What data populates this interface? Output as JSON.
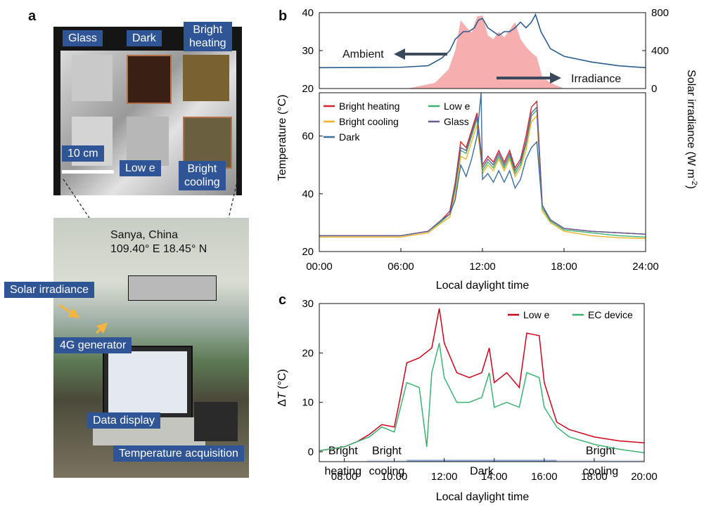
{
  "panel_a": {
    "letter": "a",
    "tile_labels": {
      "glass": "Glass",
      "dark": "Dark",
      "bright_heating": "Bright\nheating",
      "scale": "10 cm",
      "low_e": "Low e",
      "bright_cooling": "Bright\ncooling"
    },
    "site": {
      "name": "Sanya, China",
      "coords": "109.40° E 18.45° N"
    },
    "callouts": {
      "solar_irradiance": "Solar irradiance",
      "generator": "4G generator",
      "data_display": "Data display",
      "temperature_acquisition": "Temperature acquisition"
    }
  },
  "chart_data": [
    {
      "panel": "b",
      "type": "line",
      "subplot": "top",
      "series": [
        {
          "name": "Ambient",
          "color": "#2c5d8f",
          "points": [
            [
              0,
              25.5
            ],
            [
              6,
              25.6
            ],
            [
              8,
              26
            ],
            [
              9,
              28
            ],
            [
              9.6,
              30
            ],
            [
              10,
              33
            ],
            [
              10.6,
              35
            ],
            [
              11,
              35
            ],
            [
              11.4,
              36
            ],
            [
              11.7,
              38
            ],
            [
              12,
              38.5
            ],
            [
              12.4,
              36
            ],
            [
              12.8,
              35
            ],
            [
              13.2,
              34
            ],
            [
              13.6,
              35
            ],
            [
              14,
              35
            ],
            [
              14.4,
              36
            ],
            [
              14.8,
              37.5
            ],
            [
              15.2,
              36
            ],
            [
              15.6,
              37.5
            ],
            [
              15.9,
              39.5
            ],
            [
              16.3,
              35
            ],
            [
              17,
              30.5
            ],
            [
              18,
              28.5
            ],
            [
              20,
              27
            ],
            [
              22,
              26
            ],
            [
              24,
              25.5
            ]
          ]
        },
        {
          "name": "Irradiance",
          "color": "#f4a0a0",
          "axis": "right",
          "points": [
            [
              6.5,
              0
            ],
            [
              8.5,
              60
            ],
            [
              9.5,
              200
            ],
            [
              10,
              400
            ],
            [
              10.4,
              720
            ],
            [
              10.8,
              650
            ],
            [
              11.2,
              590
            ],
            [
              11.6,
              760
            ],
            [
              12,
              770
            ],
            [
              12.4,
              560
            ],
            [
              12.8,
              520
            ],
            [
              13.2,
              600
            ],
            [
              13.6,
              540
            ],
            [
              14,
              620
            ],
            [
              14.4,
              700
            ],
            [
              14.8,
              520
            ],
            [
              15.2,
              440
            ],
            [
              15.6,
              380
            ],
            [
              16,
              330
            ],
            [
              16.4,
              120
            ],
            [
              17,
              60
            ],
            [
              18,
              0
            ]
          ]
        }
      ],
      "annotations": [
        "Ambient",
        "Irradiance"
      ],
      "ylim_left": [
        20,
        40
      ],
      "yticks_left": [
        20,
        30,
        40
      ],
      "ylim_right": [
        0,
        800
      ],
      "yticks_right": [
        0,
        400,
        800
      ],
      "ylabel_right": "Solar irradiance (W m^-2)"
    },
    {
      "panel": "b",
      "type": "line",
      "subplot": "bottom",
      "legend": [
        "Bright heating",
        "Bright cooling",
        "Dark",
        "Low e",
        "Glass"
      ],
      "legend_placement": "top-left",
      "series": [
        {
          "name": "Bright heating",
          "color": "#d62728",
          "points": [
            [
              0,
              25.5
            ],
            [
              6,
              25.5
            ],
            [
              8,
              27
            ],
            [
              9,
              31
            ],
            [
              9.6,
              34
            ],
            [
              10,
              44
            ],
            [
              10.4,
              58
            ],
            [
              10.8,
              56
            ],
            [
              11.2,
              62
            ],
            [
              11.6,
              68
            ],
            [
              12,
              50
            ],
            [
              12.4,
              53
            ],
            [
              12.8,
              51
            ],
            [
              13.2,
              55
            ],
            [
              13.6,
              51
            ],
            [
              14,
              55
            ],
            [
              14.4,
              49
            ],
            [
              14.8,
              52
            ],
            [
              15.2,
              60
            ],
            [
              15.6,
              70
            ],
            [
              16,
              72
            ],
            [
              16.4,
              36
            ],
            [
              17,
              31
            ],
            [
              18,
              28
            ],
            [
              20,
              27
            ],
            [
              22,
              26.5
            ],
            [
              24,
              26
            ]
          ]
        },
        {
          "name": "Bright cooling",
          "color": "#f0b323",
          "points": [
            [
              0,
              25
            ],
            [
              6,
              25
            ],
            [
              8,
              26.5
            ],
            [
              9,
              30
            ],
            [
              9.6,
              32
            ],
            [
              10,
              40
            ],
            [
              10.4,
              53
            ],
            [
              10.8,
              52
            ],
            [
              11.2,
              58
            ],
            [
              11.6,
              64
            ],
            [
              12,
              47
            ],
            [
              12.4,
              50
            ],
            [
              12.8,
              48
            ],
            [
              13.2,
              52
            ],
            [
              13.6,
              48
            ],
            [
              14,
              52
            ],
            [
              14.4,
              46
            ],
            [
              14.8,
              49
            ],
            [
              15.2,
              55
            ],
            [
              15.6,
              65
            ],
            [
              16,
              67
            ],
            [
              16.4,
              34
            ],
            [
              17,
              30
            ],
            [
              18,
              27
            ],
            [
              20,
              25.5
            ],
            [
              22,
              24.8
            ],
            [
              24,
              24.5
            ]
          ]
        },
        {
          "name": "Dark",
          "color": "#3c6e9f",
          "points": [
            [
              0,
              25.5
            ],
            [
              6,
              25.5
            ],
            [
              8,
              27
            ],
            [
              9,
              31
            ],
            [
              9.6,
              33
            ],
            [
              10,
              38
            ],
            [
              10.4,
              50
            ],
            [
              10.8,
              46
            ],
            [
              11.2,
              52
            ],
            [
              11.6,
              60
            ],
            [
              11.9,
              75
            ],
            [
              12,
              45
            ],
            [
              12.4,
              47
            ],
            [
              12.8,
              44
            ],
            [
              13.2,
              48
            ],
            [
              13.6,
              44
            ],
            [
              14,
              48
            ],
            [
              14.4,
              42
            ],
            [
              14.8,
              45
            ],
            [
              15.2,
              52
            ],
            [
              15.6,
              56
            ],
            [
              16,
              58
            ],
            [
              16.4,
              35
            ],
            [
              17,
              31
            ],
            [
              18,
              28
            ],
            [
              20,
              27
            ],
            [
              22,
              26.5
            ],
            [
              24,
              26
            ]
          ]
        },
        {
          "name": "Low e",
          "color": "#3cb371",
          "points": [
            [
              0,
              25.5
            ],
            [
              6,
              25.5
            ],
            [
              8,
              27
            ],
            [
              9,
              30.5
            ],
            [
              9.6,
              33
            ],
            [
              10,
              42
            ],
            [
              10.4,
              55
            ],
            [
              10.8,
              54
            ],
            [
              11.2,
              60
            ],
            [
              11.6,
              66
            ],
            [
              12,
              48
            ],
            [
              12.4,
              51
            ],
            [
              12.8,
              49
            ],
            [
              13.2,
              53
            ],
            [
              13.6,
              49
            ],
            [
              14,
              53
            ],
            [
              14.4,
              47
            ],
            [
              14.8,
              50
            ],
            [
              15.2,
              57
            ],
            [
              15.6,
              67
            ],
            [
              16,
              69
            ],
            [
              16.4,
              35
            ],
            [
              17,
              30.5
            ],
            [
              18,
              27.5
            ],
            [
              20,
              26.5
            ],
            [
              22,
              25.5
            ],
            [
              24,
              25
            ]
          ]
        },
        {
          "name": "Glass",
          "color": "#6b5b95",
          "points": [
            [
              0,
              25.5
            ],
            [
              6,
              25.5
            ],
            [
              8,
              27
            ],
            [
              9,
              31
            ],
            [
              9.6,
              33
            ],
            [
              10,
              43
            ],
            [
              10.4,
              56
            ],
            [
              10.8,
              55
            ],
            [
              11.2,
              61
            ],
            [
              11.6,
              67
            ],
            [
              12,
              49
            ],
            [
              12.4,
              52
            ],
            [
              12.8,
              50
            ],
            [
              13.2,
              54
            ],
            [
              13.6,
              50
            ],
            [
              14,
              54
            ],
            [
              14.4,
              48
            ],
            [
              14.8,
              51
            ],
            [
              15.2,
              58
            ],
            [
              15.6,
              68
            ],
            [
              16,
              70
            ],
            [
              16.4,
              36
            ],
            [
              17,
              31
            ],
            [
              18,
              28
            ],
            [
              20,
              27
            ],
            [
              22,
              26.5
            ],
            [
              24,
              26
            ]
          ]
        }
      ],
      "xlim": [
        0,
        24
      ],
      "xticks": [
        "00:00",
        "06:00",
        "12:00",
        "18:00",
        "24:00"
      ],
      "ylim": [
        20,
        75
      ],
      "yticks": [
        20,
        40,
        60
      ],
      "xlabel": "Local daylight time",
      "ylabel": "Temperature (°C)"
    },
    {
      "panel": "c",
      "type": "line",
      "legend": [
        "Low e",
        "EC device"
      ],
      "legend_placement": "top-right",
      "series": [
        {
          "name": "Low e",
          "color": "#d0021b",
          "points": [
            [
              7,
              0.2
            ],
            [
              8,
              1
            ],
            [
              8.5,
              2
            ],
            [
              9,
              3.5
            ],
            [
              9.5,
              5.5
            ],
            [
              10,
              5
            ],
            [
              10.2,
              10
            ],
            [
              10.5,
              18
            ],
            [
              11,
              19
            ],
            [
              11.5,
              21
            ],
            [
              11.8,
              29
            ],
            [
              12,
              22
            ],
            [
              12.5,
              16
            ],
            [
              13,
              15
            ],
            [
              13.5,
              16
            ],
            [
              13.8,
              21
            ],
            [
              14,
              14
            ],
            [
              14.5,
              16
            ],
            [
              15,
              13
            ],
            [
              15.3,
              24
            ],
            [
              15.8,
              23.5
            ],
            [
              16,
              14
            ],
            [
              16.5,
              6
            ],
            [
              17,
              4.5
            ],
            [
              18,
              3
            ],
            [
              19,
              2.2
            ],
            [
              20,
              1.8
            ]
          ]
        },
        {
          "name": "EC device",
          "color": "#3cb371",
          "points": [
            [
              7,
              0.2
            ],
            [
              8,
              1
            ],
            [
              8.5,
              2
            ],
            [
              9,
              3
            ],
            [
              9.5,
              5
            ],
            [
              10,
              4
            ],
            [
              10.2,
              8
            ],
            [
              10.5,
              14
            ],
            [
              11,
              13
            ],
            [
              11.3,
              1
            ],
            [
              11.5,
              16
            ],
            [
              11.8,
              22
            ],
            [
              12,
              15
            ],
            [
              12.5,
              10
            ],
            [
              13,
              10
            ],
            [
              13.5,
              11
            ],
            [
              13.8,
              16
            ],
            [
              14,
              9
            ],
            [
              14.5,
              10
            ],
            [
              15,
              9
            ],
            [
              15.3,
              16
            ],
            [
              15.8,
              15
            ],
            [
              16,
              9
            ],
            [
              16.5,
              5
            ],
            [
              17,
              3
            ],
            [
              18,
              1.5
            ],
            [
              19,
              0.5
            ],
            [
              20,
              -0.2
            ]
          ]
        }
      ],
      "modes": [
        {
          "label": "Bright\nheating",
          "from": 7.0,
          "to": 8.9,
          "color": "#ffffff"
        },
        {
          "label": "Bright\ncooling",
          "from": 8.9,
          "to": 10.5,
          "color": "#dce6f4"
        },
        {
          "label": "Dark",
          "from": 10.5,
          "to": 16.5,
          "color": "#8fa9d9"
        },
        {
          "label": "Bright\ncooling",
          "from": 16.5,
          "to": 20.0,
          "color": "#dce6f4"
        }
      ],
      "xlim": [
        7,
        20
      ],
      "xticks": [
        "08:00",
        "10:00",
        "12:00",
        "14:00",
        "16:00",
        "18:00",
        "20:00"
      ],
      "ylim": [
        -2,
        30
      ],
      "yticks": [
        0,
        10,
        20,
        30
      ],
      "xlabel": "Local daylight time",
      "ylabel": "ΔT (°C)"
    }
  ],
  "letters": {
    "b": "b",
    "c": "c"
  }
}
